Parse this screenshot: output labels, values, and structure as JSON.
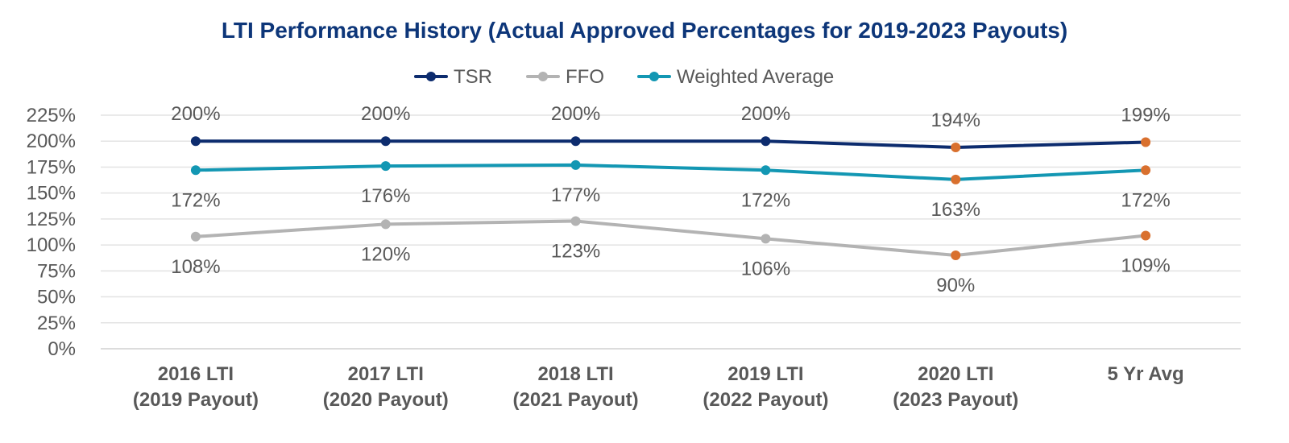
{
  "chart_data": {
    "type": "line",
    "title": "LTI Performance History (Actual Approved Percentages for 2019-2023 Payouts)",
    "categories": [
      [
        "2016 LTI",
        "(2019 Payout)"
      ],
      [
        "2017 LTI",
        "(2020 Payout)"
      ],
      [
        "2018 LTI",
        "(2021 Payout)"
      ],
      [
        "2019 LTI",
        "(2022 Payout)"
      ],
      [
        "2020 LTI",
        "(2023 Payout)"
      ],
      [
        "5 Yr Avg"
      ]
    ],
    "series": [
      {
        "name": "TSR",
        "color": "#0d2c6e",
        "values": [
          200,
          200,
          200,
          200,
          194,
          199
        ],
        "labels": [
          "200%",
          "200%",
          "200%",
          "200%",
          "194%",
          "199%"
        ],
        "label_position": "above"
      },
      {
        "name": "FFO",
        "color": "#b3b3b3",
        "values": [
          108,
          120,
          123,
          106,
          90,
          109
        ],
        "labels": [
          "108%",
          "120%",
          "123%",
          "106%",
          "90%",
          "109%"
        ],
        "label_position": "below"
      },
      {
        "name": "Weighted Average",
        "color": "#1397b3",
        "values": [
          172,
          176,
          177,
          172,
          163,
          172
        ],
        "labels": [
          "172%",
          "176%",
          "177%",
          "172%",
          "163%",
          "172%"
        ],
        "label_position": "below"
      }
    ],
    "highlight_color": "#d9702e",
    "highlight_from_index": 4,
    "ylim": [
      0,
      225
    ],
    "yticks": [
      0,
      25,
      50,
      75,
      100,
      125,
      150,
      175,
      200,
      225
    ],
    "ytick_labels": [
      "0%",
      "25%",
      "50%",
      "75%",
      "100%",
      "125%",
      "150%",
      "175%",
      "200%",
      "225%"
    ],
    "legend_position": "top-center",
    "grid": true,
    "xlabel": "",
    "ylabel": ""
  }
}
